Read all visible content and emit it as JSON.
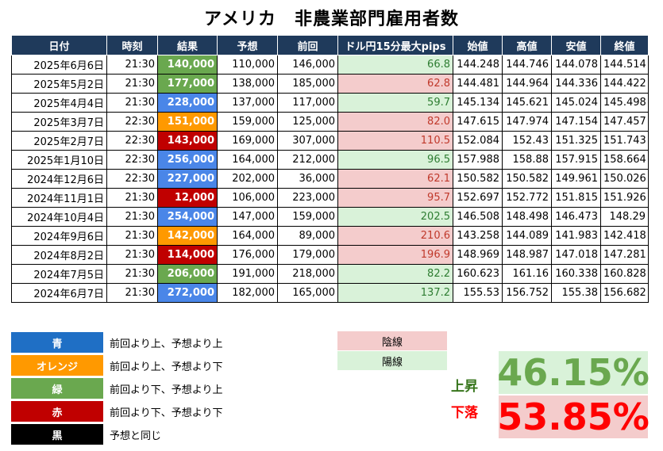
{
  "title": "アメリカ　非農業部門雇用者数",
  "table": {
    "headers": [
      "日付",
      "時刻",
      "結果",
      "予想",
      "前回",
      "ドル円15分最大pips",
      "始値",
      "高値",
      "安値",
      "終値"
    ],
    "rows": [
      {
        "date": "2025年6月6日",
        "time": "21:30",
        "result": "140,000",
        "result_color": "green",
        "forecast": "110,000",
        "previous": "146,000",
        "pips": "66.8",
        "pips_type": "pos",
        "open": "144.248",
        "high": "144.746",
        "low": "144.078",
        "close": "144.514"
      },
      {
        "date": "2025年5月2日",
        "time": "21:30",
        "result": "177,000",
        "result_color": "green",
        "forecast": "138,000",
        "previous": "185,000",
        "pips": "62.8",
        "pips_type": "neg",
        "open": "144.481",
        "high": "144.964",
        "low": "144.336",
        "close": "144.422"
      },
      {
        "date": "2025年4月4日",
        "time": "21:30",
        "result": "228,000",
        "result_color": "blue",
        "forecast": "137,000",
        "previous": "117,000",
        "pips": "59.7",
        "pips_type": "pos",
        "open": "145.134",
        "high": "145.621",
        "low": "145.024",
        "close": "145.498"
      },
      {
        "date": "2025年3月7日",
        "time": "22:30",
        "result": "151,000",
        "result_color": "orange",
        "forecast": "159,000",
        "previous": "125,000",
        "pips": "82.0",
        "pips_type": "neg",
        "open": "147.615",
        "high": "147.974",
        "low": "147.154",
        "close": "147.457"
      },
      {
        "date": "2025年2月7日",
        "time": "22:30",
        "result": "143,000",
        "result_color": "red",
        "forecast": "169,000",
        "previous": "307,000",
        "pips": "110.5",
        "pips_type": "neg",
        "open": "152.084",
        "high": "152.43",
        "low": "151.325",
        "close": "151.743"
      },
      {
        "date": "2025年1月10日",
        "time": "22:30",
        "result": "256,000",
        "result_color": "blue",
        "forecast": "164,000",
        "previous": "212,000",
        "pips": "96.5",
        "pips_type": "pos",
        "open": "157.988",
        "high": "158.88",
        "low": "157.915",
        "close": "158.664"
      },
      {
        "date": "2024年12月6日",
        "time": "22:30",
        "result": "227,000",
        "result_color": "blue",
        "forecast": "202,000",
        "previous": "36,000",
        "pips": "62.1",
        "pips_type": "neg",
        "open": "150.582",
        "high": "150.582",
        "low": "149.961",
        "close": "150.026"
      },
      {
        "date": "2024年11月1日",
        "time": "21:30",
        "result": "12,000",
        "result_color": "red",
        "forecast": "106,000",
        "previous": "223,000",
        "pips": "95.7",
        "pips_type": "neg",
        "open": "152.697",
        "high": "152.772",
        "low": "151.815",
        "close": "151.926"
      },
      {
        "date": "2024年10月4日",
        "time": "21:30",
        "result": "254,000",
        "result_color": "blue",
        "forecast": "147,000",
        "previous": "159,000",
        "pips": "202.5",
        "pips_type": "pos",
        "open": "146.508",
        "high": "148.498",
        "low": "146.473",
        "close": "148.29"
      },
      {
        "date": "2024年9月6日",
        "time": "21:30",
        "result": "142,000",
        "result_color": "orange",
        "forecast": "164,000",
        "previous": "89,000",
        "pips": "210.6",
        "pips_type": "neg",
        "open": "143.258",
        "high": "144.089",
        "low": "141.983",
        "close": "142.418"
      },
      {
        "date": "2024年8月2日",
        "time": "21:30",
        "result": "114,000",
        "result_color": "red",
        "forecast": "176,000",
        "previous": "179,000",
        "pips": "196.9",
        "pips_type": "neg",
        "open": "148.969",
        "high": "148.987",
        "low": "147.018",
        "close": "147.281"
      },
      {
        "date": "2024年7月5日",
        "time": "21:30",
        "result": "206,000",
        "result_color": "green",
        "forecast": "191,000",
        "previous": "218,000",
        "pips": "82.2",
        "pips_type": "pos",
        "open": "160.623",
        "high": "161.16",
        "low": "160.338",
        "close": "160.828"
      },
      {
        "date": "2024年6月7日",
        "time": "21:30",
        "result": "272,000",
        "result_color": "blue",
        "forecast": "182,000",
        "previous": "165,000",
        "pips": "137.2",
        "pips_type": "pos",
        "open": "155.53",
        "high": "156.752",
        "low": "155.38",
        "close": "156.682"
      }
    ]
  },
  "legend": [
    {
      "label": "青",
      "color": "#1f6fc5",
      "desc": "前回より上、予想より上"
    },
    {
      "label": "オレンジ",
      "color": "#ff9900",
      "desc": "前回より上、予想より下"
    },
    {
      "label": "緑",
      "color": "#6aa84f",
      "desc": "前回より下、予想より上"
    },
    {
      "label": "赤",
      "color": "#c00000",
      "desc": "前回より下、予想より下"
    },
    {
      "label": "黒",
      "color": "#000000",
      "desc": "予想と同じ"
    }
  ],
  "candles": {
    "negative": "陰線",
    "positive": "陽線"
  },
  "stats": {
    "up_label": "上昇",
    "up_value": "46.15%",
    "down_label": "下落",
    "down_value": "53.85%"
  }
}
